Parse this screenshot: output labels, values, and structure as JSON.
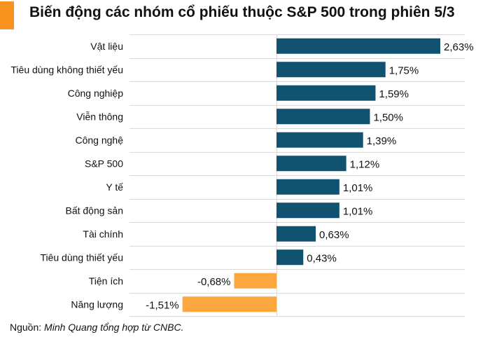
{
  "title": "Biến động các nhóm cổ phiếu thuộc S&P 500 trong phiên 5/3",
  "source": {
    "prefix": "Nguồn:",
    "text": "Minh Quang tổng hợp từ CNBC."
  },
  "colors": {
    "positive": "#10526f",
    "negative": "#fba73f",
    "accent": "#f7931e",
    "grid": "#d9d9d9"
  },
  "chart_data": {
    "type": "bar",
    "orientation": "horizontal",
    "title": "Biến động các nhóm cổ phiếu thuộc S&P 500 trong phiên 5/3",
    "categories": [
      "Vật liệu",
      "Tiêu dùng không thiết yếu",
      "Công nghiệp",
      "Viễn thông",
      "Công nghệ",
      "S&P 500",
      "Y tế",
      "Bất động sản",
      "Tài chính",
      "Tiêu dùng thiết yếu",
      "Tiện ích",
      "Năng lượng"
    ],
    "values": [
      2.63,
      1.75,
      1.59,
      1.5,
      1.39,
      1.12,
      1.01,
      1.01,
      0.63,
      0.43,
      -0.68,
      -1.51
    ],
    "value_labels": [
      "2,63%",
      "1,75%",
      "1,59%",
      "1,50%",
      "1,39%",
      "1,12%",
      "1,01%",
      "1,01%",
      "0,63%",
      "0,43%",
      "-0,68%",
      "-1,51%"
    ],
    "xlim": [
      -2.5,
      3.0
    ],
    "grid": true,
    "xlabel": "",
    "ylabel": ""
  }
}
